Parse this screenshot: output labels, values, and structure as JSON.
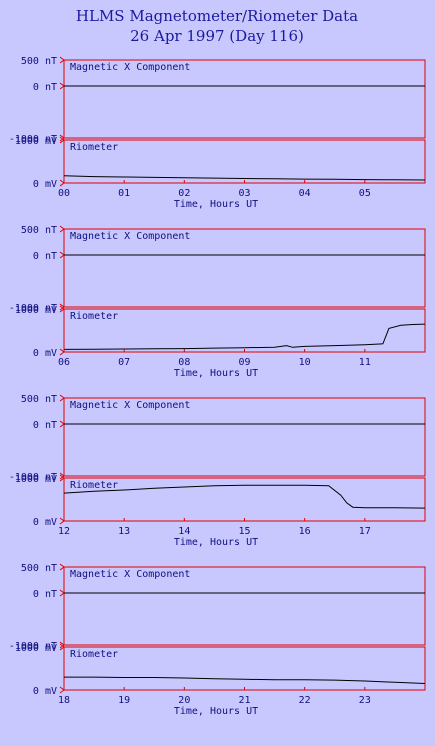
{
  "title": "HLMS Magnetometer/Riometer Data",
  "subtitle": "26 Apr 1997 (Day 116)",
  "colors": {
    "background": "#c8c8ff",
    "frame": "#e00000",
    "data": "#000000",
    "text": "#101080"
  },
  "chart_data": {
    "type": "line",
    "title": "HLMS Magnetometer/Riometer Data",
    "subtitle": "26 Apr 1997 (Day 116)",
    "xlabel": "Time, Hours UT",
    "grid": false,
    "magnetometer": {
      "name": "Magnetic X Component",
      "ylim": [
        -1000,
        500
      ],
      "tick_labels": [
        "500 nT",
        "0 nT",
        "-1000 nT"
      ],
      "tick_values": [
        500,
        0,
        -1000
      ]
    },
    "riometer": {
      "name": "Riometer",
      "ylim": [
        0,
        1000
      ],
      "tick_labels": [
        "1000 mV",
        "0 mV"
      ],
      "tick_values": [
        1000,
        0
      ]
    },
    "panels": [
      {
        "x_ticks": [
          "00",
          "01",
          "02",
          "03",
          "04",
          "05"
        ],
        "x_range": [
          0,
          6
        ],
        "magnetic_x": {
          "x": [
            0,
            6
          ],
          "y": [
            0,
            0
          ]
        },
        "riometer": {
          "x": [
            0,
            0.5,
            1,
            1.5,
            2,
            2.5,
            3,
            3.5,
            4,
            4.5,
            5,
            5.5,
            6
          ],
          "y": [
            170,
            150,
            140,
            130,
            120,
            115,
            105,
            100,
            90,
            85,
            80,
            75,
            70
          ]
        }
      },
      {
        "x_ticks": [
          "06",
          "07",
          "08",
          "09",
          "10",
          "11"
        ],
        "x_range": [
          6,
          12
        ],
        "magnetic_x": {
          "x": [
            6,
            12
          ],
          "y": [
            0,
            0
          ]
        },
        "riometer": {
          "x": [
            6,
            6.5,
            7,
            7.5,
            8,
            8.5,
            9,
            9.5,
            9.7,
            9.8,
            10,
            10.5,
            11,
            11.3,
            11.4,
            11.6,
            11.8,
            12
          ],
          "y": [
            60,
            65,
            70,
            75,
            80,
            90,
            100,
            110,
            150,
            110,
            130,
            150,
            170,
            190,
            550,
            620,
            640,
            650
          ]
        }
      },
      {
        "x_ticks": [
          "12",
          "13",
          "14",
          "15",
          "16",
          "17"
        ],
        "x_range": [
          12,
          18
        ],
        "magnetic_x": {
          "x": [
            12,
            18
          ],
          "y": [
            0,
            0
          ]
        },
        "riometer": {
          "x": [
            12,
            12.5,
            13,
            13.5,
            14,
            14.5,
            15,
            15.5,
            16,
            16.4,
            16.6,
            16.7,
            16.8,
            17,
            17.5,
            18
          ],
          "y": [
            650,
            690,
            720,
            760,
            790,
            820,
            830,
            830,
            830,
            820,
            600,
            420,
            320,
            310,
            310,
            300
          ]
        }
      },
      {
        "x_ticks": [
          "18",
          "19",
          "20",
          "21",
          "22",
          "23"
        ],
        "x_range": [
          18,
          24
        ],
        "magnetic_x": {
          "x": [
            18,
            24
          ],
          "y": [
            0,
            0
          ]
        },
        "riometer": {
          "x": [
            18,
            18.5,
            19,
            19.5,
            20,
            20.5,
            21,
            21.5,
            22,
            22.5,
            23,
            23.5,
            24
          ],
          "y": [
            300,
            300,
            290,
            290,
            280,
            260,
            250,
            240,
            240,
            230,
            210,
            180,
            150
          ]
        }
      }
    ]
  }
}
